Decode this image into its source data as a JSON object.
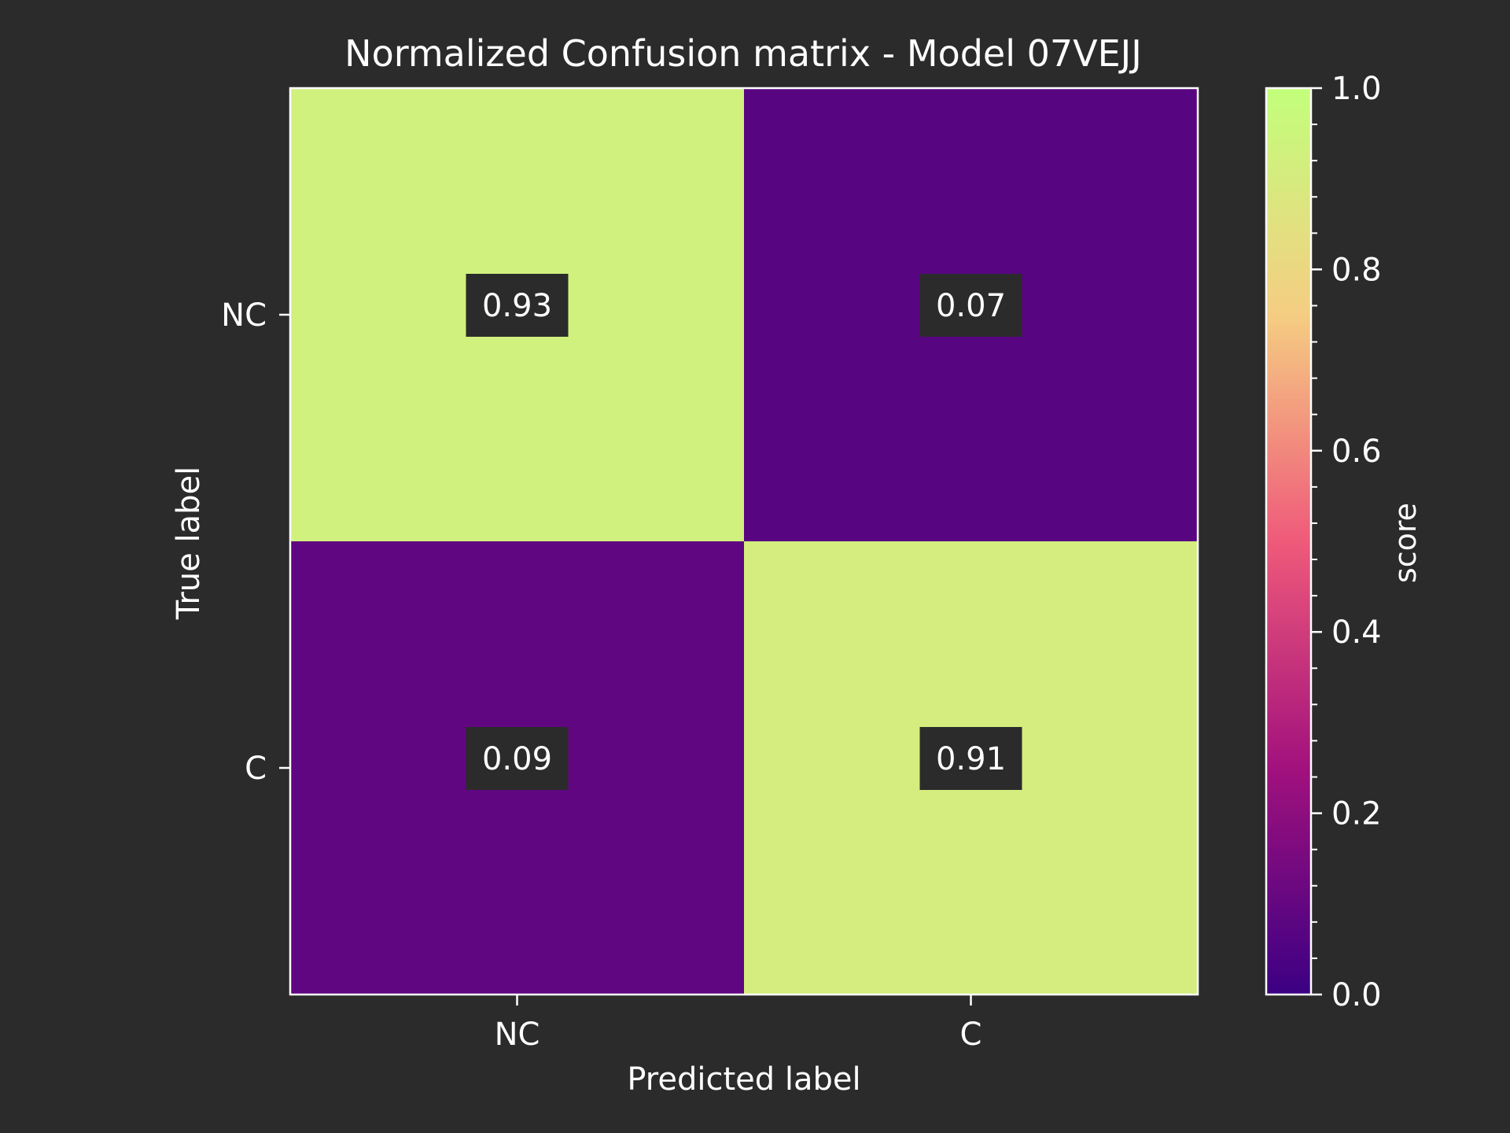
{
  "chart_data": {
    "type": "heatmap",
    "title": "Normalized Confusion matrix - Model 07VEJJ",
    "xlabel": "Predicted label",
    "ylabel": "True label",
    "x_categories": [
      "NC",
      "C"
    ],
    "y_categories": [
      "NC",
      "C"
    ],
    "values": [
      [
        0.93,
        0.07
      ],
      [
        0.09,
        0.91
      ]
    ],
    "colorbar": {
      "label": "score",
      "range": [
        0.0,
        1.0
      ],
      "ticks": [
        "0.0",
        "0.2",
        "0.4",
        "0.6",
        "0.8",
        "1.0"
      ],
      "colormap": "plasma-like",
      "stops": [
        "#3b0083",
        "#a2117d",
        "#ef5a7a",
        "#f5cd82",
        "#c2ff7b"
      ]
    },
    "colors": {
      "background": "#2b2b2b",
      "foreground": "#ffffff",
      "label_box": "#2b2b2b"
    }
  }
}
